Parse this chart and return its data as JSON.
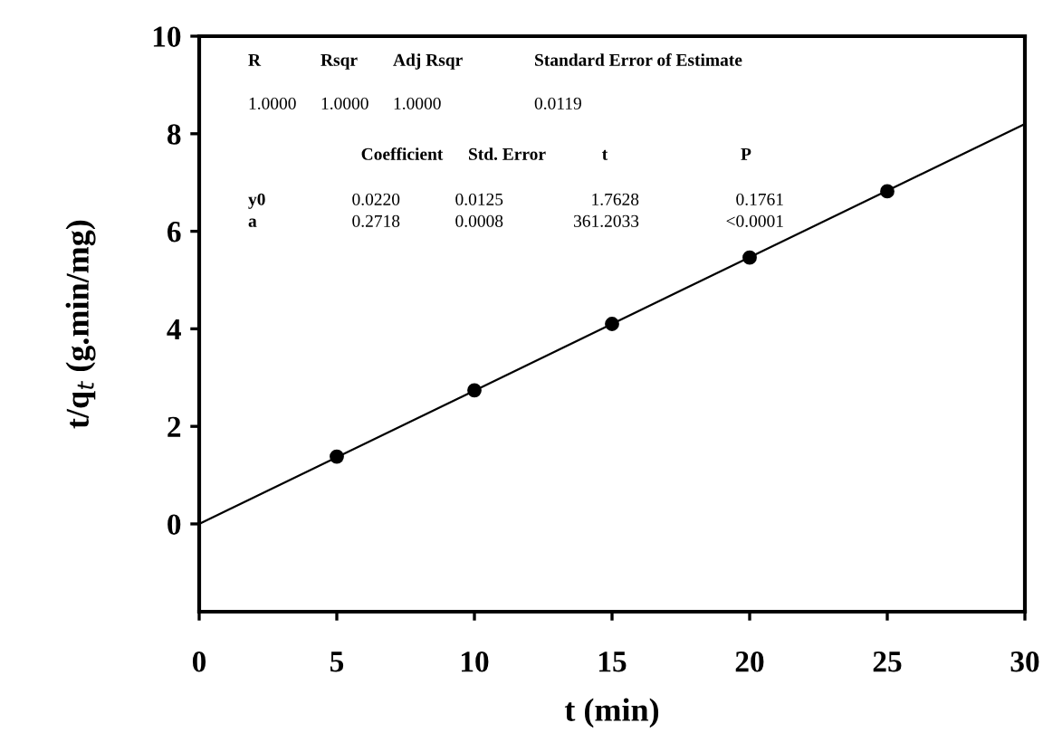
{
  "chart_data": {
    "type": "scatter",
    "xlabel": "t (min)",
    "ylabel": "t/q$_{t}$ (g.min/mg)",
    "xlim": [
      0,
      30
    ],
    "ylim": [
      -1.8,
      10
    ],
    "xticks": [
      0,
      5,
      10,
      15,
      20,
      25,
      30
    ],
    "yticks": [
      0,
      2,
      4,
      6,
      8,
      10
    ],
    "grid": false,
    "legend": false,
    "marker": "circle",
    "series": [
      {
        "color": "#000000",
        "x": [
          5,
          10,
          15,
          20,
          25
        ],
        "values": [
          1.38,
          2.74,
          4.1,
          5.46,
          6.82
        ]
      },
      {
        "type": "line",
        "color": "#000000",
        "line_style": "solid",
        "marker": "none",
        "x": [
          0,
          30
        ],
        "values": [
          0.0,
          8.2
        ]
      }
    ],
    "annotations": [
      "R",
      "Rsqr",
      "Adj Rsqr",
      "Standard Error of Estimate",
      "1.0000",
      "1.0000",
      "1.0000",
      "0.0119",
      "Coefficient",
      "Std. Error",
      "t",
      "P",
      "y0",
      "0.0220",
      "0.0125",
      "1.7628",
      "0.1761",
      "a",
      "0.2718",
      "0.0008",
      "361.2033",
      "<0.0001"
    ]
  }
}
